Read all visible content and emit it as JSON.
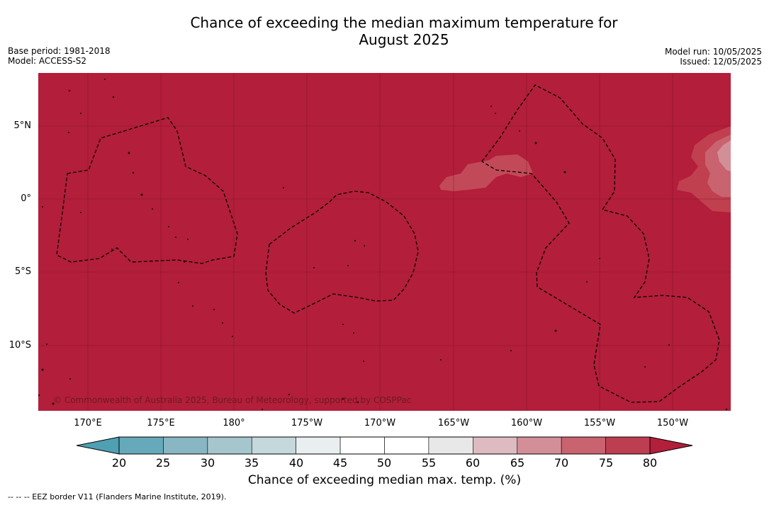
{
  "title_line1": "Chance of exceeding the median maximum temperature for",
  "title_line2": "August 2025",
  "meta_left": {
    "base_period": "Base period: 1981-2018",
    "model": "Model: ACCESS-S2"
  },
  "meta_right": {
    "model_run": "Model run: 10/05/2025",
    "issued": "Issued: 12/05/2025"
  },
  "map": {
    "background_color": "#b31e3a",
    "lat_labels": [
      "5°N",
      "0°",
      "5°S",
      "10°S"
    ],
    "lon_labels": [
      "170°E",
      "175°E",
      "180°",
      "175°W",
      "170°W",
      "165°W",
      "160°W",
      "155°W",
      "150°W"
    ],
    "copyright": "© Commonwealth of Australia 2025, Bureau of Meteorology, supported by COSPPac"
  },
  "colorbar": {
    "ticks": [
      "20",
      "25",
      "30",
      "35",
      "40",
      "45",
      "50",
      "55",
      "60",
      "65",
      "70",
      "75",
      "80"
    ],
    "colors": [
      "#66a9ba",
      "#88b6c3",
      "#a6c6cd",
      "#c5d8dc",
      "#e9eff1",
      "#ffffff",
      "#ffffff",
      "#e8e8e8",
      "#debbc0",
      "#d38f98",
      "#c9636f",
      "#bd3e50"
    ],
    "low_extend_color": "#4fa0b3",
    "high_extend_color": "#b31e3a",
    "label": "Chance of exceeding median max. temp. (%)"
  },
  "footnote": "--  --  -- EEZ border V11 (Flanders Marine Institute, 2019)."
}
